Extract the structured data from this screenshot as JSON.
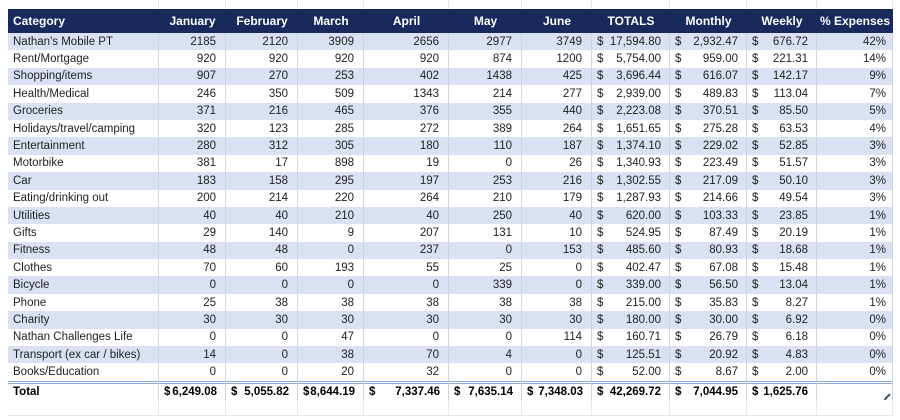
{
  "colors": {
    "header_bg": "#18295B",
    "band_bg": "#D9E1F2",
    "grid_line": "#CCD4E4",
    "total_border": "#8FAADC",
    "header_text": "#FFFFFF"
  },
  "currency": "$",
  "table": {
    "columns": [
      "Category",
      "January",
      "February",
      "March",
      "April",
      "May",
      "June",
      "TOTALS",
      "Monthly",
      "Weekly",
      "% Expenses"
    ],
    "rows": [
      {
        "category": "Nathan's Mobile PT",
        "months": [
          "2185",
          "2120",
          "3909",
          "2656",
          "2977",
          "3749"
        ],
        "total": "17,594.80",
        "monthly": "2,932.47",
        "weekly": "676.72",
        "pct": "42%"
      },
      {
        "category": "Rent/Mortgage",
        "months": [
          "920",
          "920",
          "920",
          "920",
          "874",
          "1200"
        ],
        "total": "5,754.00",
        "monthly": "959.00",
        "weekly": "221.31",
        "pct": "14%"
      },
      {
        "category": "Shopping/items",
        "months": [
          "907",
          "270",
          "253",
          "402",
          "1438",
          "425"
        ],
        "total": "3,696.44",
        "monthly": "616.07",
        "weekly": "142.17",
        "pct": "9%"
      },
      {
        "category": "Health/Medical",
        "months": [
          "246",
          "350",
          "509",
          "1343",
          "214",
          "277"
        ],
        "total": "2,939.00",
        "monthly": "489.83",
        "weekly": "113.04",
        "pct": "7%"
      },
      {
        "category": "Groceries",
        "months": [
          "371",
          "216",
          "465",
          "376",
          "355",
          "440"
        ],
        "total": "2,223.08",
        "monthly": "370.51",
        "weekly": "85.50",
        "pct": "5%"
      },
      {
        "category": "Holidays/travel/camping",
        "months": [
          "320",
          "123",
          "285",
          "272",
          "389",
          "264"
        ],
        "total": "1,651.65",
        "monthly": "275.28",
        "weekly": "63.53",
        "pct": "4%"
      },
      {
        "category": "Entertainment",
        "months": [
          "280",
          "312",
          "305",
          "180",
          "110",
          "187"
        ],
        "total": "1,374.10",
        "monthly": "229.02",
        "weekly": "52.85",
        "pct": "3%"
      },
      {
        "category": "Motorbike",
        "months": [
          "381",
          "17",
          "898",
          "19",
          "0",
          "26"
        ],
        "total": "1,340.93",
        "monthly": "223.49",
        "weekly": "51.57",
        "pct": "3%"
      },
      {
        "category": "Car",
        "months": [
          "183",
          "158",
          "295",
          "197",
          "253",
          "216"
        ],
        "total": "1,302.55",
        "monthly": "217.09",
        "weekly": "50.10",
        "pct": "3%"
      },
      {
        "category": "Eating/drinking out",
        "months": [
          "200",
          "214",
          "220",
          "264",
          "210",
          "179"
        ],
        "total": "1,287.93",
        "monthly": "214.66",
        "weekly": "49.54",
        "pct": "3%"
      },
      {
        "category": "Utilities",
        "months": [
          "40",
          "40",
          "210",
          "40",
          "250",
          "40"
        ],
        "total": "620.00",
        "monthly": "103.33",
        "weekly": "23.85",
        "pct": "1%"
      },
      {
        "category": "Gifts",
        "months": [
          "29",
          "140",
          "9",
          "207",
          "131",
          "10"
        ],
        "total": "524.95",
        "monthly": "87.49",
        "weekly": "20.19",
        "pct": "1%"
      },
      {
        "category": "Fitness",
        "months": [
          "48",
          "48",
          "0",
          "237",
          "0",
          "153"
        ],
        "total": "485.60",
        "monthly": "80.93",
        "weekly": "18.68",
        "pct": "1%"
      },
      {
        "category": "Clothes",
        "months": [
          "70",
          "60",
          "193",
          "55",
          "25",
          "0"
        ],
        "total": "402.47",
        "monthly": "67.08",
        "weekly": "15.48",
        "pct": "1%"
      },
      {
        "category": "Bicycle",
        "months": [
          "0",
          "0",
          "0",
          "0",
          "339",
          "0"
        ],
        "total": "339.00",
        "monthly": "56.50",
        "weekly": "13.04",
        "pct": "1%"
      },
      {
        "category": "Phone",
        "months": [
          "25",
          "38",
          "38",
          "38",
          "38",
          "38"
        ],
        "total": "215.00",
        "monthly": "35.83",
        "weekly": "8.27",
        "pct": "1%"
      },
      {
        "category": "Charity",
        "months": [
          "30",
          "30",
          "30",
          "30",
          "30",
          "30"
        ],
        "total": "180.00",
        "monthly": "30.00",
        "weekly": "6.92",
        "pct": "0%"
      },
      {
        "category": "Nathan Challenges Life",
        "months": [
          "0",
          "0",
          "47",
          "0",
          "0",
          "114"
        ],
        "total": "160.71",
        "monthly": "26.79",
        "weekly": "6.18",
        "pct": "0%"
      },
      {
        "category": "Transport (ex car / bikes)",
        "months": [
          "14",
          "0",
          "38",
          "70",
          "4",
          "0"
        ],
        "total": "125.51",
        "monthly": "20.92",
        "weekly": "4.83",
        "pct": "0%"
      },
      {
        "category": "Books/Education",
        "months": [
          "0",
          "0",
          "20",
          "32",
          "0",
          "0"
        ],
        "total": "52.00",
        "monthly": "8.67",
        "weekly": "2.00",
        "pct": "0%"
      }
    ],
    "total_row": {
      "label": "Total",
      "months": [
        "6,249.08",
        "5,055.82",
        "8,644.19",
        "7,337.46",
        "7,635.14",
        "7,348.03"
      ],
      "total": "42,269.72",
      "monthly": "7,044.95",
      "weekly": "1,625.76",
      "pct": ""
    }
  }
}
